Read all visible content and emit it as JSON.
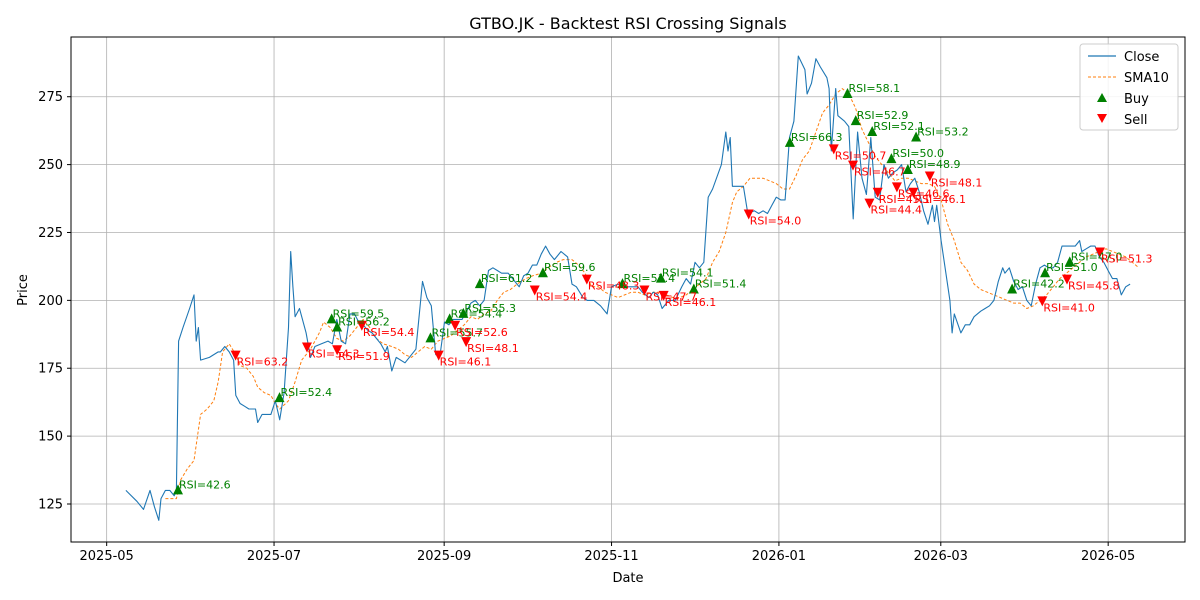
{
  "chart_data": {
    "type": "line",
    "title": "GTBO.JK - Backtest RSI Crossing Signals",
    "xlabel": "Date",
    "ylabel": "Price",
    "xlim": [
      "2025-04-18",
      "2026-05-29"
    ],
    "ylim": [
      111,
      297
    ],
    "yticks": [
      125,
      150,
      175,
      200,
      225,
      250,
      275
    ],
    "xticks": [
      "2025-05-01",
      "2025-07-01",
      "2025-09-01",
      "2025-11-01",
      "2026-01-01",
      "2026-03-01",
      "2026-05-01"
    ],
    "xtick_labels": [
      "2025-05",
      "2025-07",
      "2025-09",
      "2025-11",
      "2026-01",
      "2026-03",
      "2026-05"
    ],
    "grid": true,
    "legend": "top-right",
    "colors": {
      "close": "#1f77b4",
      "sma": "#ff7f0e",
      "buy": "#008000",
      "sell": "#ff0000"
    },
    "series": [
      {
        "name": "Close",
        "style": "solid",
        "points": [
          [
            "2025-05-08",
            130
          ],
          [
            "2025-05-13",
            126
          ],
          [
            "2025-05-16",
            123
          ],
          [
            "2025-05-19",
            130
          ],
          [
            "2025-05-21",
            124
          ],
          [
            "2025-05-23",
            119
          ],
          [
            "2025-05-24",
            127
          ],
          [
            "2025-05-26",
            130
          ],
          [
            "2025-05-28",
            130
          ],
          [
            "2025-05-30",
            128
          ],
          [
            "2025-05-31",
            130
          ],
          [
            "2025-06-01",
            185
          ],
          [
            "2025-06-03",
            190
          ],
          [
            "2025-06-06",
            197
          ],
          [
            "2025-06-08",
            202
          ],
          [
            "2025-06-09",
            185
          ],
          [
            "2025-06-10",
            190
          ],
          [
            "2025-06-11",
            178
          ],
          [
            "2025-06-15",
            179
          ],
          [
            "2025-06-19",
            181
          ],
          [
            "2025-06-20",
            181
          ],
          [
            "2025-06-22",
            183
          ],
          [
            "2025-06-24",
            181
          ],
          [
            "2025-06-26",
            178
          ],
          [
            "2025-06-27",
            165
          ],
          [
            "2025-06-29",
            162
          ],
          [
            "2025-07-01",
            161
          ],
          [
            "2025-07-03",
            160
          ],
          [
            "2025-07-06",
            160
          ],
          [
            "2025-07-07",
            155
          ],
          [
            "2025-07-09",
            158
          ],
          [
            "2025-07-13",
            158
          ],
          [
            "2025-07-15",
            163
          ],
          [
            "2025-07-17",
            156
          ],
          [
            "2025-07-19",
            166
          ],
          [
            "2025-07-21",
            190
          ],
          [
            "2025-07-22",
            218
          ],
          [
            "2025-07-23",
            205
          ],
          [
            "2025-07-24",
            194
          ],
          [
            "2025-07-26",
            197
          ],
          [
            "2025-07-29",
            188
          ],
          [
            "2025-07-31",
            179
          ],
          [
            "2025-08-02",
            183
          ],
          [
            "2025-08-05",
            184
          ],
          [
            "2025-08-08",
            185
          ],
          [
            "2025-08-10",
            184
          ],
          [
            "2025-08-12",
            193
          ],
          [
            "2025-08-14",
            185
          ],
          [
            "2025-08-16",
            184
          ],
          [
            "2025-08-18",
            195
          ],
          [
            "2025-08-20",
            195
          ],
          [
            "2025-08-22",
            192
          ],
          [
            "2025-08-24",
            191
          ],
          [
            "2025-08-26",
            189
          ],
          [
            "2025-08-28",
            188
          ],
          [
            "2025-08-30",
            186
          ],
          [
            "2025-09-01",
            184
          ],
          [
            "2025-09-03",
            181
          ],
          [
            "2025-09-04",
            183
          ],
          [
            "2025-09-06",
            174
          ],
          [
            "2025-09-08",
            179
          ],
          [
            "2025-09-12",
            177
          ],
          [
            "2025-09-15",
            180
          ],
          [
            "2025-09-17",
            182
          ],
          [
            "2025-09-20",
            207
          ],
          [
            "2025-09-22",
            201
          ],
          [
            "2025-09-24",
            198
          ],
          [
            "2025-09-26",
            180
          ],
          [
            "2025-09-28",
            180
          ],
          [
            "2025-09-30",
            192
          ],
          [
            "2025-10-02",
            191
          ],
          [
            "2025-10-04",
            193
          ],
          [
            "2025-10-06",
            193
          ],
          [
            "2025-10-08",
            193
          ],
          [
            "2025-10-10",
            196
          ],
          [
            "2025-10-12",
            199
          ],
          [
            "2025-10-14",
            200
          ],
          [
            "2025-10-16",
            198
          ],
          [
            "2025-10-18",
            200
          ],
          [
            "2025-10-20",
            211
          ],
          [
            "2025-10-22",
            212
          ],
          [
            "2025-10-24",
            211
          ],
          [
            "2025-10-26",
            210
          ],
          [
            "2025-10-29",
            210
          ],
          [
            "2025-10-31",
            208
          ],
          [
            "2025-11-03",
            205
          ],
          [
            "2025-11-05",
            209
          ],
          [
            "2025-11-07",
            210
          ],
          [
            "2025-11-09",
            213
          ],
          [
            "2025-11-11",
            213
          ],
          [
            "2025-11-13",
            217
          ],
          [
            "2025-11-15",
            220
          ],
          [
            "2025-11-17",
            217
          ],
          [
            "2025-11-19",
            215
          ],
          [
            "2025-11-22",
            218
          ],
          [
            "2025-11-25",
            216
          ],
          [
            "2025-11-27",
            206
          ],
          [
            "2025-11-29",
            205
          ],
          [
            "2025-12-02",
            201
          ],
          [
            "2025-12-04",
            200
          ],
          [
            "2025-12-06",
            200
          ],
          [
            "2025-12-07",
            200
          ],
          [
            "2025-12-10",
            198
          ],
          [
            "2025-12-13",
            195
          ],
          [
            "2025-12-15",
            205
          ],
          [
            "2025-12-18",
            206
          ],
          [
            "2025-12-21",
            205
          ],
          [
            "2025-12-24",
            205
          ],
          [
            "2025-12-27",
            205
          ],
          [
            "2025-12-29",
            203
          ],
          [
            "2026-01-01",
            201
          ],
          [
            "2026-01-03",
            203
          ],
          [
            "2026-01-05",
            202
          ],
          [
            "2026-01-07",
            197
          ],
          [
            "2026-01-10",
            200
          ],
          [
            "2026-01-13",
            200
          ],
          [
            "2026-01-16",
            205
          ],
          [
            "2026-01-18",
            208
          ],
          [
            "2026-01-20",
            206
          ],
          [
            "2026-01-22",
            214
          ],
          [
            "2026-01-24",
            212
          ],
          [
            "2026-01-26",
            214
          ],
          [
            "2026-01-28",
            238
          ],
          [
            "2026-01-30",
            241
          ],
          [
            "2026-02-03",
            250
          ],
          [
            "2026-02-05",
            262
          ],
          [
            "2026-02-06",
            255
          ],
          [
            "2026-02-07",
            260
          ],
          [
            "2026-02-08",
            242
          ],
          [
            "2026-02-13",
            242
          ],
          [
            "2026-02-15",
            232
          ],
          [
            "2026-02-18",
            233
          ],
          [
            "2026-02-20",
            232
          ],
          [
            "2026-02-22",
            233
          ],
          [
            "2026-02-24",
            232
          ],
          [
            "2026-02-26",
            235
          ],
          [
            "2026-02-28",
            238
          ],
          [
            "2026-03-02",
            237
          ],
          [
            "2026-03-04",
            237
          ],
          [
            "2026-03-06",
            260
          ],
          [
            "2026-03-08",
            266
          ],
          [
            "2026-03-10",
            290
          ],
          [
            "2026-03-13",
            285
          ],
          [
            "2026-03-14",
            276
          ],
          [
            "2026-03-16",
            280
          ],
          [
            "2026-03-18",
            289
          ],
          [
            "2026-03-20",
            286
          ],
          [
            "2026-03-23",
            282
          ],
          [
            "2026-03-24",
            278
          ],
          [
            "2026-03-25",
            255
          ],
          [
            "2026-03-27",
            278
          ],
          [
            "2026-03-28",
            268
          ],
          [
            "2026-03-31",
            266
          ],
          [
            "2026-04-02",
            264
          ],
          [
            "2026-04-04",
            230
          ],
          [
            "2026-04-06",
            262
          ],
          [
            "2026-04-08",
            245
          ],
          [
            "2026-04-10",
            239
          ],
          [
            "2026-04-12",
            260
          ],
          [
            "2026-04-14",
            238
          ],
          [
            "2026-04-16",
            237
          ],
          [
            "2026-04-18",
            250
          ],
          [
            "2026-04-20",
            245
          ],
          [
            "2026-04-22",
            247
          ],
          [
            "2026-04-24",
            248
          ],
          [
            "2026-04-26",
            250
          ],
          [
            "2026-04-28",
            240
          ],
          [
            "2026-04-30",
            243
          ],
          [
            "2026-05-02",
            245
          ],
          [
            "2026-05-04",
            240
          ],
          [
            "2026-05-06",
            233
          ],
          [
            "2026-05-08",
            228
          ],
          [
            "2026-05-10",
            235
          ],
          [
            "2026-05-11",
            229
          ],
          [
            "2026-05-12",
            235
          ],
          [
            "2026-05-14",
            222
          ],
          [
            "2026-05-18",
            200
          ],
          [
            "2026-05-19",
            188
          ],
          [
            "2026-05-20",
            195
          ],
          [
            "2026-05-23",
            188
          ],
          [
            "2026-05-25",
            191
          ],
          [
            "2026-05-27",
            191
          ],
          [
            "2026-05-29",
            194
          ]
        ]
      }
    ],
    "buy_signals": [],
    "sell_signals": []
  }
}
